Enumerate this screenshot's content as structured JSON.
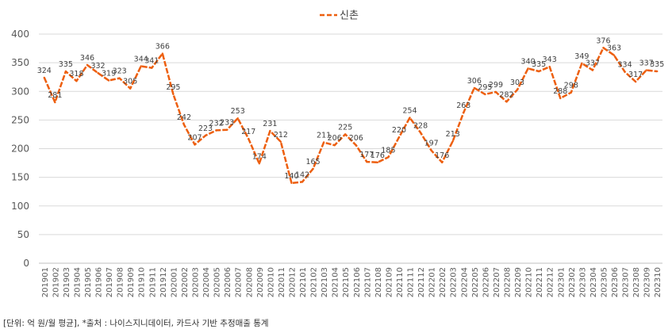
{
  "chart_data": {
    "type": "line",
    "series": [
      {
        "name": "신촌",
        "color": "#ed5f0f",
        "line_style": "dashed",
        "values": [
          324,
          281,
          335,
          318,
          346,
          332,
          319,
          323,
          305,
          344,
          341,
          366,
          295,
          242,
          207,
          223,
          232,
          233,
          253,
          217,
          174,
          231,
          212,
          140,
          142,
          165,
          211,
          206,
          225,
          206,
          177,
          176,
          185,
          220,
          254,
          228,
          197,
          176,
          213,
          263,
          306,
          295,
          299,
          282,
          303,
          340,
          335,
          343,
          288,
          298,
          349,
          337,
          376,
          363,
          334,
          317,
          337,
          335
        ]
      }
    ],
    "categories": [
      "201901",
      "201902",
      "201903",
      "201904",
      "201905",
      "201906",
      "201907",
      "201908",
      "201909",
      "201910",
      "201911",
      "201912",
      "202001",
      "202002",
      "202003",
      "202004",
      "202005",
      "202006",
      "202007",
      "202008",
      "202009",
      "202010",
      "202011",
      "202012",
      "202101",
      "202102",
      "202103",
      "202104",
      "202105",
      "202106",
      "202107",
      "202108",
      "202109",
      "202110",
      "202111",
      "202112",
      "202201",
      "202202",
      "202203",
      "202204",
      "202205",
      "202206",
      "202207",
      "202208",
      "202209",
      "202210",
      "202211",
      "202212",
      "202301",
      "202302",
      "202303",
      "202304",
      "202305",
      "202306",
      "202307",
      "202308",
      "202309",
      "202310"
    ],
    "ylim": [
      0,
      400
    ],
    "yticks": [
      0,
      50,
      100,
      150,
      200,
      250,
      300,
      350,
      400
    ],
    "grid": "horizontal",
    "legend_position": "top-center"
  },
  "footnote": "[단위: 억 원/월 평균], *출처 : 나이스지니데이터, 카드사 기반 추정매출 통계"
}
